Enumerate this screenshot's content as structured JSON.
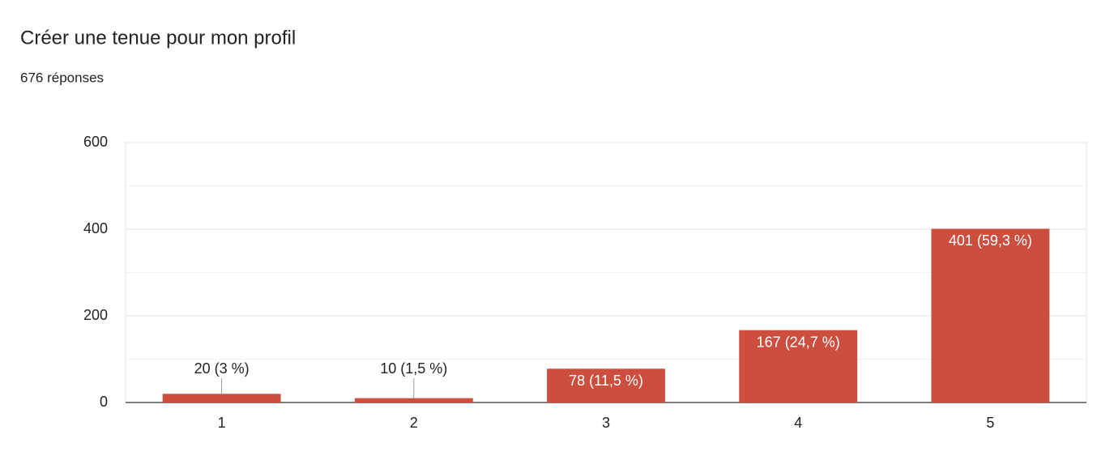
{
  "chart_data": {
    "type": "bar",
    "title": "Créer une tenue pour mon profil",
    "subtitle": "676 réponses",
    "categories": [
      "1",
      "2",
      "3",
      "4",
      "5"
    ],
    "values": [
      20,
      10,
      78,
      167,
      401
    ],
    "value_labels": [
      "20 (3 %)",
      "10 (1,5 %)",
      "78 (11,5 %)",
      "167 (24,7 %)",
      "401 (59,3 %)"
    ],
    "color": "#cc4e3e",
    "ylim": [
      0,
      600
    ],
    "yticks": [
      0,
      200,
      400,
      600
    ],
    "minor_yticks": [
      100,
      300,
      500
    ],
    "grid": true
  }
}
